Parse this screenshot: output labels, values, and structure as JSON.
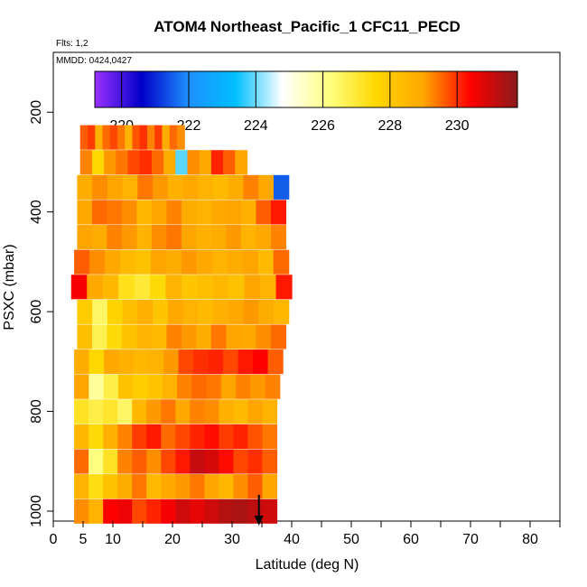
{
  "chart_data": {
    "type": "heatmap",
    "title": "ATOM4 Northeast_Pacific_1 CFC11_PECD",
    "flights_label": "Flts: 1,2",
    "dates_label": "MMDD: 0424,0427",
    "xlabel": "Latitude (deg N)",
    "ylabel": "PSXC (mbar)",
    "xlim": [
      0,
      85
    ],
    "ylim": [
      1020,
      80
    ],
    "x_ticks": [
      0,
      5,
      10,
      20,
      30,
      40,
      50,
      60,
      70,
      80
    ],
    "y_ticks": [
      200,
      400,
      600,
      800,
      1000
    ],
    "colorbar": {
      "min": 219.2,
      "max": 231.8,
      "ticks": [
        220,
        222,
        224,
        226,
        228,
        230
      ],
      "colors": [
        "#9b30ff",
        "#0000c8",
        "#1e90ff",
        "#00bfff",
        "#ffffff",
        "#ffff80",
        "#ffd700",
        "#ffa500",
        "#ff0000",
        "#8b1a1a"
      ]
    },
    "marker": {
      "latitude": 34.5,
      "pressure": 1000,
      "symbol": "down-arrow"
    },
    "series": [
      {
        "name": "p 1000",
        "pressure": 1000,
        "lat_range": [
          3.5,
          37.5
        ],
        "values": [
          229.2,
          228.6,
          230.4,
          230.6,
          229.8,
          230.1,
          230.5,
          231.0,
          230.7,
          231.0,
          231.3,
          231.4,
          231.2,
          231.0
        ]
      },
      {
        "name": "p 950",
        "pressure": 950,
        "lat_range": [
          3.5,
          37.5
        ],
        "values": [
          228.6,
          227.4,
          228.2,
          228.8,
          229.4,
          228.4,
          228.9,
          229.1,
          229.4,
          229.0,
          228.5,
          229.2,
          229.6,
          229.0
        ]
      },
      {
        "name": "p 900",
        "pressure": 900,
        "lat_range": [
          3.5,
          37.5
        ],
        "values": [
          229.5,
          226.2,
          227.2,
          229.3,
          229.6,
          229.2,
          229.8,
          230.2,
          231.1,
          230.9,
          230.3,
          229.8,
          230.0,
          229.6
        ]
      },
      {
        "name": "p 850",
        "pressure": 850,
        "lat_range": [
          3.5,
          37.5
        ],
        "values": [
          228.5,
          227.5,
          228.7,
          229.3,
          229.9,
          230.2,
          229.5,
          229.8,
          230.1,
          230.3,
          229.9,
          230.1,
          229.7,
          229.4
        ]
      },
      {
        "name": "p 800",
        "pressure": 800,
        "lat_range": [
          3.5,
          37.5
        ],
        "values": [
          227.2,
          226.8,
          227.1,
          226.5,
          228.5,
          229.1,
          229.4,
          228.9,
          229.3,
          229.2,
          228.7,
          228.4,
          229.0,
          228.6
        ]
      },
      {
        "name": "p 750",
        "pressure": 750,
        "lat_range": [
          3.5,
          38.0
        ],
        "values": [
          229.0,
          225.9,
          226.8,
          228.2,
          227.9,
          228.1,
          228.6,
          229.3,
          229.5,
          229.4,
          229.0,
          229.3,
          229.1,
          229.3
        ]
      },
      {
        "name": "p 700",
        "pressure": 700,
        "lat_range": [
          3.5,
          38.5
        ],
        "values": [
          228.8,
          227.6,
          228.9,
          228.7,
          228.5,
          228.6,
          229.1,
          229.8,
          230.0,
          230.1,
          229.8,
          230.2,
          230.4,
          229.6
        ]
      },
      {
        "name": "p 650",
        "pressure": 650,
        "lat_range": [
          4.0,
          39.0
        ],
        "values": [
          228.3,
          226.7,
          227.5,
          228.2,
          228.6,
          228.4,
          229.3,
          229.1,
          228.8,
          229.4,
          229.0,
          228.9,
          229.2,
          229.5
        ]
      },
      {
        "name": "p 600",
        "pressure": 600,
        "lat_range": [
          4.0,
          39.5
        ],
        "values": [
          227.9,
          226.5,
          227.7,
          228.3,
          228.7,
          228.1,
          228.9,
          228.6,
          228.4,
          228.7,
          228.9,
          229.1,
          228.8,
          228.5
        ]
      },
      {
        "name": "p 550",
        "pressure": 550,
        "lat_range": [
          3.0,
          40.0
        ],
        "values": [
          230.5,
          228.9,
          228.5,
          227.3,
          227.0,
          227.5,
          228.6,
          228.1,
          228.3,
          228.5,
          228.2,
          229.0,
          228.6,
          230.2
        ]
      },
      {
        "name": "p 500",
        "pressure": 500,
        "lat_range": [
          3.5,
          39.5
        ],
        "values": [
          229.6,
          229.2,
          228.9,
          228.4,
          228.2,
          229.0,
          228.8,
          229.1,
          228.9,
          228.6,
          228.8,
          229.0,
          228.4,
          229.5
        ]
      },
      {
        "name": "p 450",
        "pressure": 450,
        "lat_range": [
          4.0,
          39.0
        ],
        "values": [
          229.0,
          228.8,
          229.3,
          229.1,
          228.6,
          229.2,
          229.4,
          229.0,
          228.7,
          228.8,
          229.1,
          228.6,
          228.9,
          229.3
        ]
      },
      {
        "name": "p 400",
        "pressure": 400,
        "lat_range": [
          4.0,
          39.0
        ],
        "values": [
          228.9,
          229.5,
          229.4,
          229.2,
          228.5,
          229.0,
          229.3,
          228.8,
          228.6,
          228.9,
          229.0,
          228.7,
          229.6,
          230.2
        ]
      },
      {
        "name": "p 350",
        "pressure": 350,
        "lat_range": [
          4.0,
          39.5
        ],
        "values": [
          228.8,
          229.2,
          229.0,
          228.6,
          229.4,
          229.1,
          228.7,
          228.9,
          228.6,
          228.4,
          228.8,
          229.3,
          228.9,
          221.5
        ]
      },
      {
        "name": "p 300",
        "pressure": 300,
        "lat_range": [
          4.5,
          32.5
        ],
        "values": [
          229.3,
          227.6,
          229.1,
          229.4,
          229.8,
          230.0,
          229.5,
          228.8,
          223.9,
          229.2,
          228.9,
          230.1,
          229.6,
          229.0
        ]
      },
      {
        "name": "p 250",
        "pressure": 250,
        "lat_range": [
          4.5,
          22.0
        ],
        "values": [
          229.6,
          229.9,
          228.7,
          229.5,
          229.8,
          229.4,
          228.6,
          229.7,
          230.0,
          229.3,
          229.9,
          228.8,
          229.5,
          229.2
        ]
      }
    ]
  }
}
